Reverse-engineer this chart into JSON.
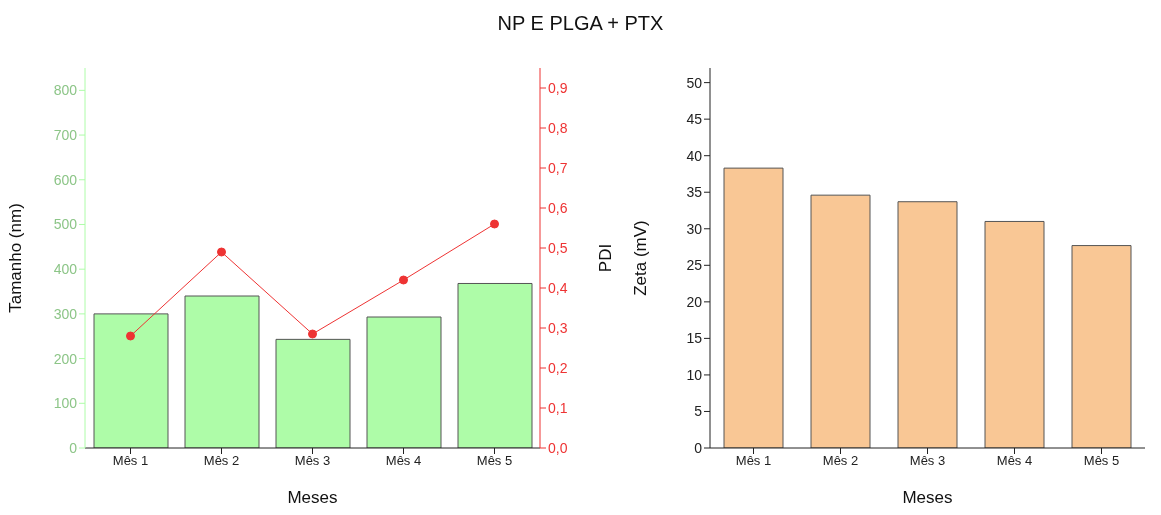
{
  "chart_data": [
    {
      "type": "bar",
      "title": "NP E PLGA + PTX",
      "categories": [
        "Mês 1",
        "Mês 2",
        "Mês 3",
        "Mês 4",
        "Mês 5"
      ],
      "xlabel": "Meses",
      "ylabel": "Tamanho (nm)",
      "y2label": "PDI",
      "series": [
        {
          "color": "#aefca8",
          "values": [
            300,
            340,
            243,
            293,
            368
          ]
        },
        {
          "type": "line",
          "axis": "y2",
          "color": "#ee3333",
          "marker": "circle",
          "values": [
            0.28,
            0.49,
            0.285,
            0.42,
            0.56
          ]
        }
      ],
      "ylim": [
        0,
        850
      ],
      "yticks": [
        0,
        100,
        200,
        300,
        400,
        500,
        600,
        700,
        800
      ],
      "y2lim": [
        0,
        0.95
      ],
      "y2ticks": [
        {
          "value": 0,
          "label": "0,0"
        },
        {
          "value": 0.1,
          "label": "0,1"
        },
        {
          "value": 0.2,
          "label": "0,2"
        },
        {
          "value": 0.3,
          "label": "0,3"
        },
        {
          "value": 0.4,
          "label": "0,4"
        },
        {
          "value": 0.5,
          "label": "0,5"
        },
        {
          "value": 0.6,
          "label": "0,6"
        },
        {
          "value": 0.7,
          "label": "0,7"
        },
        {
          "value": 0.8,
          "label": "0,8"
        },
        {
          "value": 0.9,
          "label": "0,9"
        }
      ],
      "grid": false,
      "legend": false
    },
    {
      "type": "bar",
      "categories": [
        "Mês 1",
        "Mês 2",
        "Mês 3",
        "Mês 4",
        "Mês 5"
      ],
      "xlabel": "Meses",
      "ylabel": "Zeta (mV)",
      "series": [
        {
          "color": "#f9c795",
          "values": [
            38.3,
            34.6,
            33.7,
            31.0,
            27.7
          ]
        }
      ],
      "ylim": [
        0,
        52
      ],
      "yticks": [
        0,
        5,
        10,
        15,
        20,
        25,
        30,
        35,
        40,
        45,
        50
      ],
      "grid": false,
      "legend": false
    }
  ]
}
